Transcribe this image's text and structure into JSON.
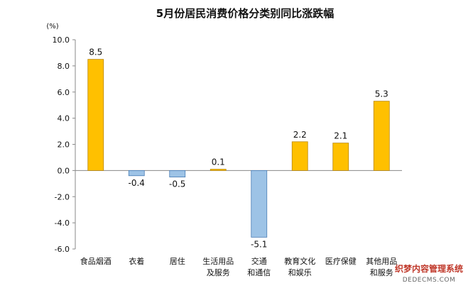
{
  "chart_data": {
    "type": "bar",
    "title": "5月份居民消费价格分类别同比涨跌幅",
    "unit_label": "(%)",
    "categories": [
      [
        "食品烟酒"
      ],
      [
        "衣着"
      ],
      [
        "居住"
      ],
      [
        "生活用品",
        "及服务"
      ],
      [
        "交通",
        "和通信"
      ],
      [
        "教育文化",
        "和娱乐"
      ],
      [
        "医疗保健"
      ],
      [
        "其他用品",
        "和服务"
      ]
    ],
    "values": [
      8.5,
      -0.4,
      -0.5,
      0.1,
      -5.1,
      2.2,
      2.1,
      5.3
    ],
    "value_labels": [
      "8.5",
      "-0.4",
      "-0.5",
      "0.1",
      "-5.1",
      "2.2",
      "2.1",
      "5.3"
    ],
    "ylim": [
      -6.0,
      10.0
    ],
    "yticks": [
      "10.0",
      "8.0",
      "6.0",
      "4.0",
      "2.0",
      "0.0",
      "-2.0",
      "-4.0",
      "-6.0"
    ],
    "ytick_values": [
      10,
      8,
      6,
      4,
      2,
      0,
      -2,
      -4,
      -6
    ],
    "grid": false,
    "colors": {
      "positive": "#FFC000",
      "positive_border": "#B8860B",
      "negative": "#9DC3E6",
      "negative_border": "#4A7DB5",
      "axis": "#888888"
    }
  },
  "watermark": {
    "main": "织梦内容管理系统",
    "sub": "DEDECMS.COM"
  }
}
